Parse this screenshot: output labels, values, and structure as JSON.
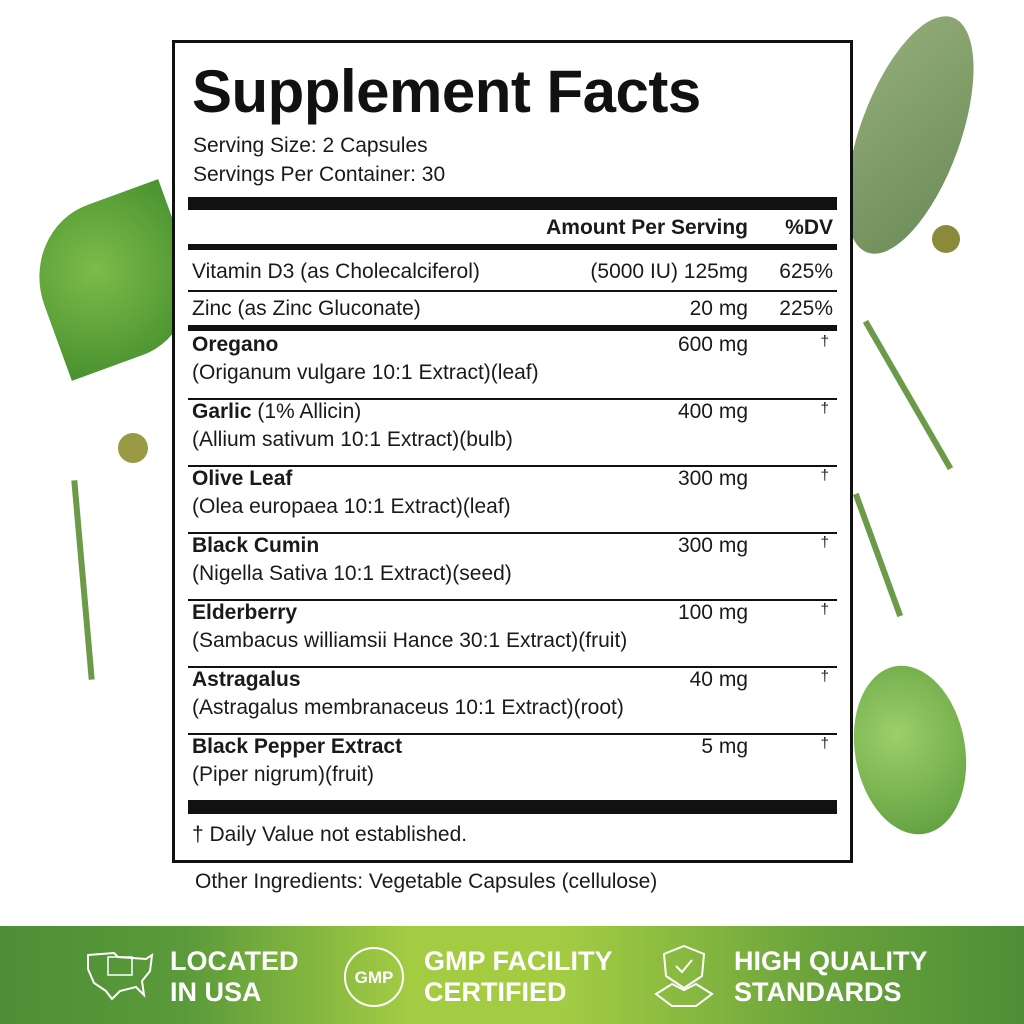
{
  "title": "Supplement Facts",
  "serving_size": "Serving Size: 2 Capsules",
  "servings_per_container": "Servings Per Container: 30",
  "header": {
    "amount": "Amount Per Serving",
    "dv": "%DV"
  },
  "vitamins": [
    {
      "name": "Vitamin D3 (as Cholecalciferol)",
      "amount": "(5000 IU) 125mg",
      "dv": "625%"
    },
    {
      "name": "Zinc (as Zinc Gluconate)",
      "amount": "20 mg",
      "dv": "225%"
    }
  ],
  "herbs": [
    {
      "name": "Oregano",
      "detail": "(Origanum vulgare 10:1 Extract)(leaf)",
      "amount": "600 mg",
      "dv": "†"
    },
    {
      "name": "Garlic",
      "name_note": " (1% Allicin)",
      "detail": "(Allium sativum 10:1 Extract)(bulb)",
      "amount": "400 mg",
      "dv": "†"
    },
    {
      "name": "Olive Leaf",
      "detail": "(Olea europaea 10:1 Extract)(leaf)",
      "amount": "300 mg",
      "dv": "†"
    },
    {
      "name": "Black Cumin",
      "detail": "(Nigella Sativa 10:1 Extract)(seed)",
      "amount": "300 mg",
      "dv": "†"
    },
    {
      "name": "Elderberry",
      "detail": "(Sambacus williamsii Hance 30:1 Extract)(fruit)",
      "amount": "100 mg",
      "dv": "†"
    },
    {
      "name": "Astragalus",
      "detail": "(Astragalus membranaceus 10:1 Extract)(root)",
      "amount": "40 mg",
      "dv": "†"
    },
    {
      "name": "Black Pepper Extract",
      "detail": "(Piper nigrum)(fruit)",
      "amount": "5 mg",
      "dv": "†"
    }
  ],
  "footnote": "† Daily Value not established.",
  "other_ingredients": "Other Ingredients: Vegetable Capsules (cellulose)",
  "badges": [
    {
      "icon": "usa-map-flag-icon",
      "line1": "LOCATED",
      "line2": "IN USA"
    },
    {
      "icon": "gmp-seal-icon",
      "seal_text": "GMP",
      "line1": "GMP FACILITY",
      "line2": "CERTIFIED"
    },
    {
      "icon": "shield-handshake-icon",
      "line1": "HIGH QUALITY",
      "line2": "STANDARDS"
    }
  ],
  "colors": {
    "band_dark": "#4e8f36",
    "band_light": "#a3cc43",
    "leaf": "#5f9a3c"
  }
}
